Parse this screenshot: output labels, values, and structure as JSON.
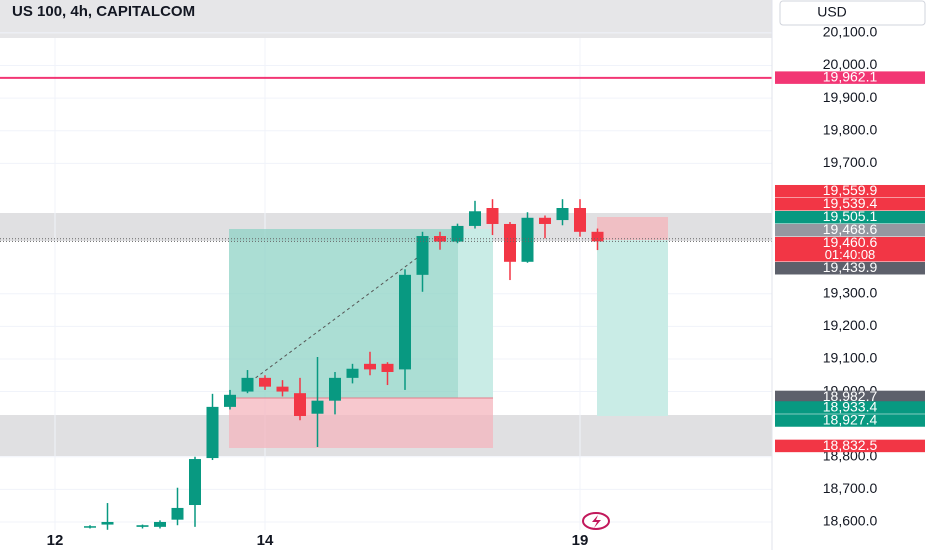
{
  "chart_data": {
    "type": "candlestick",
    "title": "US 100, 4h, CAPITALCOM",
    "currency": "USD",
    "categories": [
      "12",
      null,
      null,
      null,
      null,
      null,
      null,
      null,
      null,
      null,
      null,
      null,
      "14",
      null,
      null,
      null,
      null,
      null,
      null,
      null,
      null,
      null,
      null,
      null,
      null,
      null,
      null,
      null,
      null,
      null,
      "19",
      null
    ],
    "open": [
      null,
      null,
      18585,
      18592,
      null,
      18585,
      18585,
      18607,
      18652,
      18796,
      18953,
      19000,
      19042,
      19015,
      18995,
      18932,
      18972,
      19042,
      19085,
      19085,
      19068,
      19358,
      19477,
      19460,
      19508,
      19563,
      19514,
      19398,
      19533,
      19526,
      19563,
      19490
    ],
    "high": [
      null,
      null,
      18590,
      18658,
      null,
      18592,
      18605,
      18705,
      18800,
      18993,
      19005,
      19066,
      19050,
      19035,
      19042,
      19106,
      19060,
      19085,
      19122,
      19090,
      19375,
      19490,
      19490,
      19515,
      19585,
      19590,
      19520,
      19550,
      19540,
      19590,
      19590,
      19500
    ],
    "low": [
      null,
      null,
      18580,
      18576,
      null,
      18580,
      18580,
      18590,
      18585,
      18790,
      18945,
      18995,
      19005,
      18985,
      18912,
      18830,
      18930,
      19025,
      19050,
      19020,
      19005,
      19306,
      19435,
      19455,
      19500,
      19480,
      19342,
      19395,
      19470,
      19510,
      19475,
      19434
    ],
    "close": [
      null,
      null,
      18587,
      18600,
      null,
      18590,
      18600,
      18643,
      18793,
      18953,
      18990,
      19042,
      19015,
      19000,
      18925,
      18972,
      19042,
      19070,
      19068,
      19060,
      19358,
      19477,
      19460,
      19508,
      19553,
      19514,
      19398,
      19533,
      19514,
      19563,
      19490,
      19460.6
    ],
    "up_color": "#089981",
    "down_color": "#f23645",
    "ylim": [
      18514,
      20201
    ],
    "yticks": [
      {
        "value": 20100,
        "label": "20,100.0"
      },
      {
        "value": 20000,
        "label": "20,000.0"
      },
      {
        "value": 19900,
        "label": "19,900.0"
      },
      {
        "value": 19800,
        "label": "19,800.0"
      },
      {
        "value": 19700,
        "label": "19,700.0"
      },
      {
        "value": 19300,
        "label": "19,300.0"
      },
      {
        "value": 19200,
        "label": "19,200.0"
      },
      {
        "value": 19100,
        "label": "19,100.0"
      },
      {
        "value": 19000,
        "label": "19,000.0"
      },
      {
        "value": 18800,
        "label": "18,800.0"
      },
      {
        "value": 18700,
        "label": "18,700.0"
      },
      {
        "value": 18600,
        "label": "18,600.0"
      }
    ],
    "grid": true,
    "price_labels": [
      {
        "value": 19962.1,
        "label": "19,962.1",
        "color": "#f23674",
        "ray": true
      },
      {
        "value": 19559.9,
        "label": "19,559.9",
        "color": "#f23645"
      },
      {
        "value": 19539.4,
        "label": "19,539.4",
        "color": "#f23645"
      },
      {
        "value": 19505.1,
        "label": "19,505.1",
        "color": "#089981"
      },
      {
        "value": 19468.6,
        "label": "19,468.6",
        "color": "#9598a1",
        "dotted": true
      },
      {
        "value": 19460.6,
        "label": "19,460.6",
        "sublabel": "01:40:08",
        "color": "#f23645",
        "dotted": true
      },
      {
        "value": 19439.9,
        "label": "19,439.9",
        "color": "#5d606b"
      },
      {
        "value": 18982.7,
        "label": "18,982.7",
        "color": "#5d606b"
      },
      {
        "value": 18933.4,
        "label": "18,933.4",
        "color": "#089981"
      },
      {
        "value": 18927.4,
        "label": "18,927.4",
        "color": "#089981"
      },
      {
        "value": 18832.5,
        "label": "18,832.5",
        "color": "#f23645"
      }
    ]
  }
}
